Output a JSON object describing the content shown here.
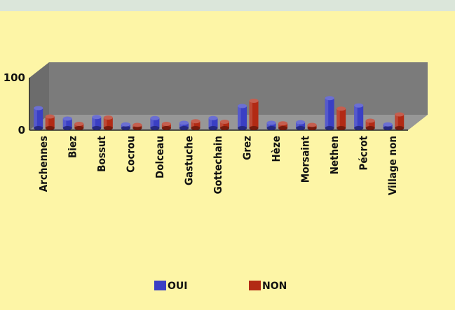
{
  "chart_data": {
    "type": "bar",
    "style": "3d-cylinder",
    "title": "",
    "xlabel": "",
    "ylabel": "",
    "ylim": [
      0,
      100
    ],
    "yticks": [
      "0",
      "100"
    ],
    "categories": [
      "Archennes",
      "Biez",
      "Bossut",
      "Cocrou",
      "Dolceau",
      "Gastuche",
      "Gottechain",
      "Grez",
      "Hèze",
      "Morsaint",
      "Nethen",
      "Pécrot",
      "Village non"
    ],
    "series": [
      {
        "name": "OUI",
        "color": "#3a3fc4",
        "values": [
          38,
          18,
          21,
          7,
          19,
          10,
          19,
          42,
          10,
          11,
          57,
          43,
          7
        ]
      },
      {
        "name": "NON",
        "color": "#b22a14",
        "values": [
          22,
          8,
          20,
          6,
          8,
          13,
          12,
          52,
          9,
          6,
          37,
          14,
          26
        ]
      }
    ],
    "legend_position": "bottom",
    "colors": {
      "background": "#fdf5a6",
      "plot_wall": "#7b7b7b",
      "plot_floor": "#979797",
      "top_band": "#dbe6da"
    }
  }
}
